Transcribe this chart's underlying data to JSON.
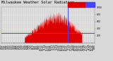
{
  "title": "Milwaukee Weather Solar Radiation",
  "bg_color": "#d8d8d8",
  "plot_bg": "#d8d8d8",
  "bar_color": "#dd0000",
  "avg_line_color": "#4444ff",
  "current_line_color": "#4444ff",
  "legend_red": "#dd0000",
  "legend_blue": "#4444ff",
  "num_points": 720,
  "peak_index": 420,
  "peak_value": 850,
  "avg_value": 280,
  "current_index": 510,
  "ylim": [
    0,
    1000
  ],
  "yticks": [
    200,
    400,
    600,
    800,
    1000
  ],
  "grid_color": "#ffffff",
  "title_fontsize": 3.8,
  "tick_fontsize": 2.2,
  "sunrise": 180,
  "sunset": 620
}
